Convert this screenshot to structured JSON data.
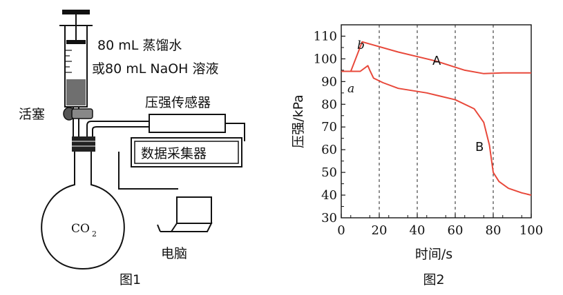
{
  "figure1": {
    "caption": "图1",
    "syringe_label_line1": "80 mL 蒸馏水",
    "syringe_label_line2": "或80 mL NaOH 溶液",
    "stopcock_label": "活塞",
    "sensor_label": "压强传感器",
    "collector_label": "数据采集器",
    "computer_label": "电脑",
    "flask_label_main": "CO",
    "flask_label_sub": "2"
  },
  "figure2": {
    "caption": "图2",
    "xlabel": "时间/s",
    "ylabel": "压强/kPa",
    "point_a": "a",
    "point_b": "b",
    "curve_A": "A",
    "curve_B": "B"
  },
  "chart_data": {
    "type": "line",
    "xlim": [
      0,
      100
    ],
    "ylim": [
      30,
      115
    ],
    "x_ticks": [
      0,
      20,
      40,
      60,
      80,
      100
    ],
    "y_ticks": [
      30,
      40,
      50,
      60,
      70,
      80,
      90,
      100,
      110
    ],
    "grid": "dashed vertical lines at each x tick",
    "series": [
      {
        "name": "A",
        "color": "#e8483a",
        "points": [
          [
            0,
            94.5
          ],
          [
            5,
            94.5
          ],
          [
            11,
            107.5
          ],
          [
            30,
            103
          ],
          [
            50,
            99
          ],
          [
            65,
            95
          ],
          [
            75,
            93.5
          ],
          [
            85,
            93.8
          ],
          [
            100,
            93.8
          ]
        ]
      },
      {
        "name": "B",
        "color": "#e8483a",
        "points": [
          [
            0,
            94.5
          ],
          [
            6,
            94.5
          ],
          [
            10,
            94.5
          ],
          [
            14,
            97
          ],
          [
            15,
            95
          ],
          [
            17,
            91.5
          ],
          [
            22,
            89.5
          ],
          [
            30,
            87
          ],
          [
            45,
            85
          ],
          [
            60,
            82
          ],
          [
            70,
            78
          ],
          [
            75,
            72
          ],
          [
            78,
            62
          ],
          [
            80,
            50
          ],
          [
            83,
            46
          ],
          [
            88,
            43
          ],
          [
            95,
            41
          ],
          [
            100,
            40
          ]
        ]
      }
    ],
    "annotations": [
      {
        "text": "a",
        "x": 5,
        "y": 94.5
      },
      {
        "text": "b",
        "x": 11,
        "y": 107.5
      }
    ]
  }
}
